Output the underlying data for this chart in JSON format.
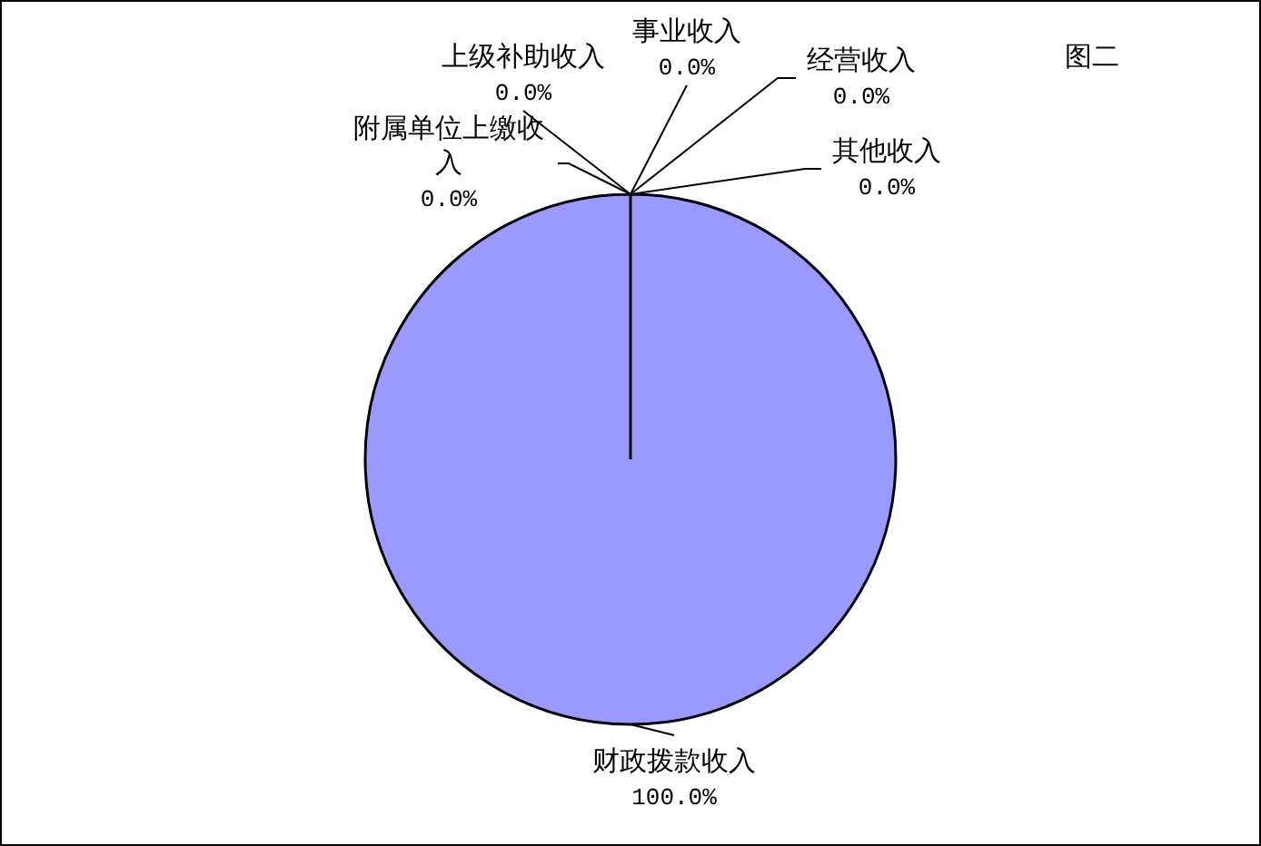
{
  "chart_data": {
    "type": "pie",
    "title": "图二",
    "categories": [
      "财政拨款收入",
      "上级补助收入",
      "事业收入",
      "经营收入",
      "附属单位上缴收入",
      "其他收入"
    ],
    "values": [
      100,
      0,
      0,
      0,
      0,
      0
    ],
    "colors": [
      "#9999ff",
      "#993366",
      "#ffffcc",
      "#ccffff",
      "#660066",
      "#ff8080"
    ],
    "value_labels": [
      "100.0%",
      "0.0%",
      "0.0%",
      "0.0%",
      "0.0%",
      "0.0%"
    ]
  }
}
